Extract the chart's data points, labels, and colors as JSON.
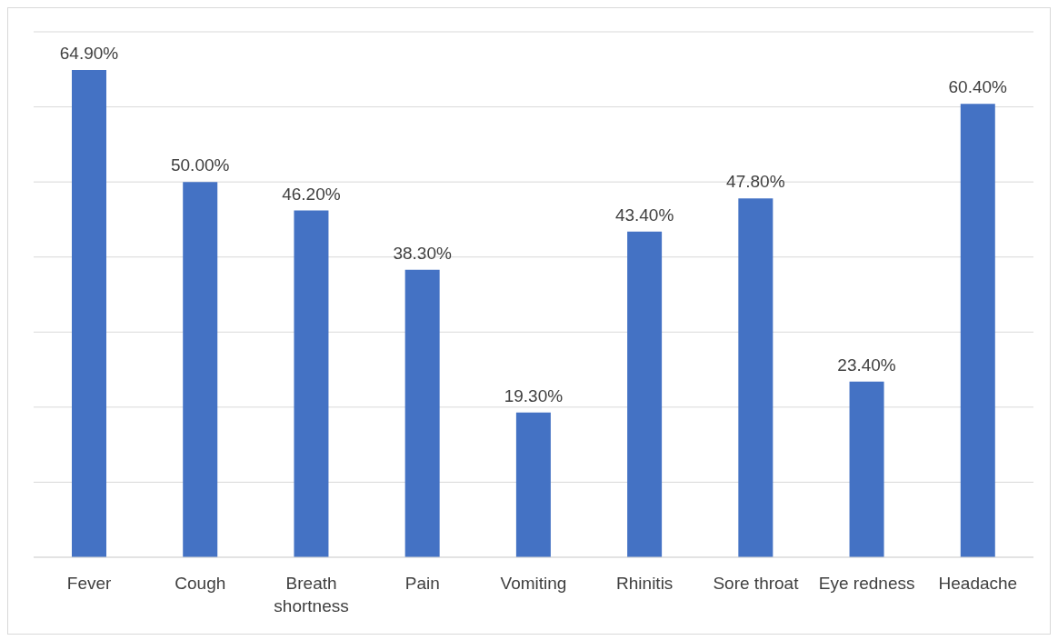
{
  "chart_data": {
    "type": "bar",
    "categories": [
      "Fever",
      "Cough",
      "Breath shortness",
      "Pain",
      "Vomiting",
      "Rhinitis",
      "Sore throat",
      "Eye redness",
      "Headache"
    ],
    "values": [
      64.9,
      50.0,
      46.2,
      38.3,
      19.3,
      43.4,
      47.8,
      23.4,
      60.4
    ],
    "value_labels": [
      "64.90%",
      "50.00%",
      "46.20%",
      "38.30%",
      "19.30%",
      "43.40%",
      "47.80%",
      "23.40%",
      "60.40%"
    ],
    "color": "#4472c4",
    "ylim": [
      0,
      70
    ],
    "yticks": [
      {
        "value": 0,
        "label": null
      },
      {
        "value": 10,
        "label": null
      },
      {
        "value": 20,
        "label": null
      },
      {
        "value": 30,
        "label": null
      },
      {
        "value": 40,
        "label": null
      },
      {
        "value": 50,
        "label": null
      },
      {
        "value": 60,
        "label": null
      },
      {
        "value": 70,
        "label": null
      }
    ],
    "grid": "y",
    "tick_labels": "x",
    "legend": false
  }
}
